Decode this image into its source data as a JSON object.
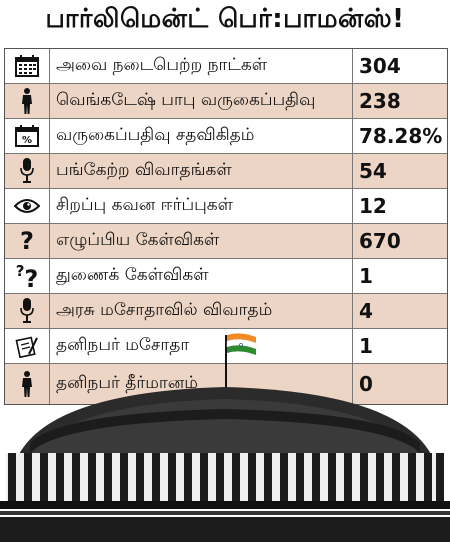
{
  "title": "பார்லிமென்ட் பெர்:பாமன்ஸ்!",
  "rows": [
    {
      "icon": "calendar-icon",
      "label": "அவை நடைபெற்ற நாட்கள்",
      "value": "304"
    },
    {
      "icon": "person-icon",
      "label": "வெங்கடேஷ் பாபு வருகைப்பதிவு",
      "value": "238"
    },
    {
      "icon": "percent-calendar-icon",
      "label": "வருகைப்பதிவு சதவிகிதம்",
      "value": "78.28%"
    },
    {
      "icon": "microphone-icon",
      "label": "பங்கேற்ற விவாதங்கள்",
      "value": "54"
    },
    {
      "icon": "eye-icon",
      "label": "சிறப்பு கவன ஈர்ப்புகள்",
      "value": "12"
    },
    {
      "icon": "question-icon",
      "label": "எழுப்பிய கேள்விகள்",
      "value": "670"
    },
    {
      "icon": "double-question-icon",
      "label": "துணைக் கேள்விகள்",
      "value": "1"
    },
    {
      "icon": "microphone-icon",
      "label": "அரசு மசோதாவில் விவாதம்",
      "value": "4"
    },
    {
      "icon": "document-pen-icon",
      "label": "தனிநபர் மசோதா",
      "value": "1"
    },
    {
      "icon": "person-icon",
      "label": "தனிநபர் தீர்மானம்",
      "value": "0"
    }
  ],
  "colors": {
    "row_shade": "#edd5c5",
    "flag_saffron": "#f08a24",
    "flag_green": "#2e8b2e",
    "ink": "#111111"
  }
}
